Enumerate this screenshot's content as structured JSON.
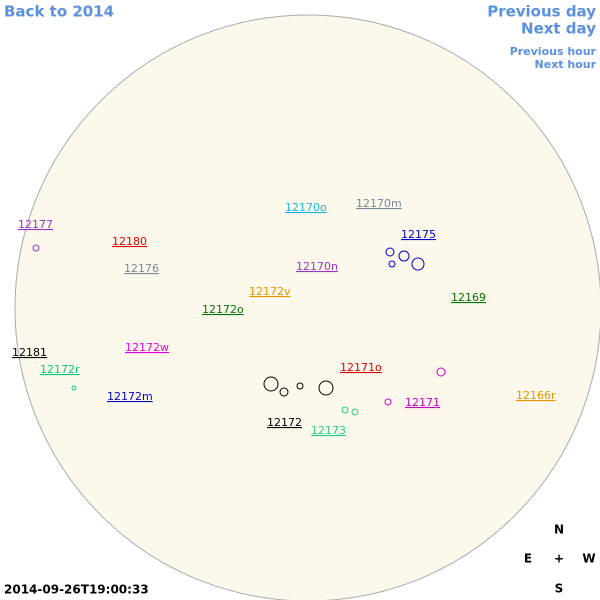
{
  "nav": {
    "back": "Back to 2014",
    "previous_day": "Previous day",
    "next_day": "Next day",
    "previous_hour": "Previous hour",
    "next_hour": "Next hour"
  },
  "regions": [
    {
      "label": "12177",
      "color": "#9933cc"
    },
    {
      "label": "12180",
      "color": "#dd0000"
    },
    {
      "label": "12176",
      "color": "#778899"
    },
    {
      "label": "12170o",
      "color": "#1ab2e6"
    },
    {
      "label": "12170m",
      "color": "#778899"
    },
    {
      "label": "12175",
      "color": "#0000cc"
    },
    {
      "label": "12170n",
      "color": "#9933cc"
    },
    {
      "label": "12172v",
      "color": "#e69500"
    },
    {
      "label": "12169",
      "color": "#007700"
    },
    {
      "label": "12172o",
      "color": "#007700"
    },
    {
      "label": "12181",
      "color": "#000000"
    },
    {
      "label": "12172w",
      "color": "#e600e6"
    },
    {
      "label": "12172r",
      "color": "#00cc77"
    },
    {
      "label": "12171o",
      "color": "#dd0000"
    },
    {
      "label": "12166r",
      "color": "#e69500"
    },
    {
      "label": "12172m",
      "color": "#0000cc"
    },
    {
      "label": "12171",
      "color": "#cc00cc"
    },
    {
      "label": "12172",
      "color": "#000000"
    },
    {
      "label": "12173",
      "color": "#22cc88"
    }
  ],
  "timestamp": "2014-09-26T19:00:33",
  "compass": {
    "n": "N",
    "e": "E",
    "center": "+",
    "w": "W",
    "s": "S"
  }
}
